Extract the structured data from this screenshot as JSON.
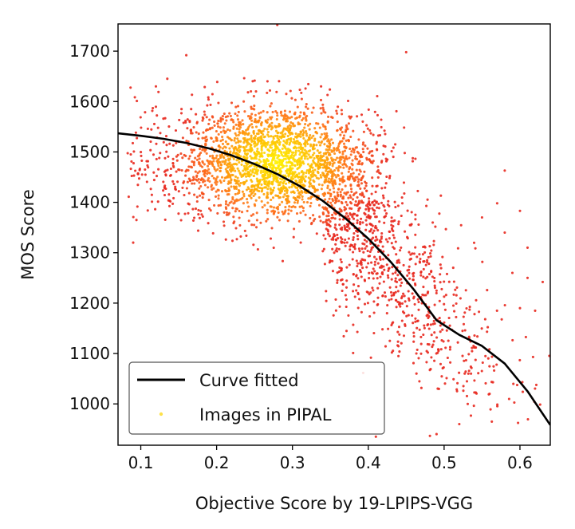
{
  "chart_data": {
    "type": "scatter",
    "xlabel": "Objective Score by 19-LPIPS-VGG",
    "ylabel": "MOS Score",
    "xlim": [
      0.07,
      0.64
    ],
    "ylim": [
      918,
      1754
    ],
    "x_ticks": [
      0.1,
      0.2,
      0.3,
      0.4,
      0.5,
      0.6
    ],
    "y_ticks": [
      1000,
      1100,
      1200,
      1300,
      1400,
      1500,
      1600,
      1700
    ],
    "x_tick_labels": [
      "0.1",
      "0.2",
      "0.3",
      "0.4",
      "0.5",
      "0.6"
    ],
    "y_tick_labels": [
      "1000",
      "1100",
      "1200",
      "1300",
      "1400",
      "1500",
      "1600",
      "1700"
    ],
    "grid": false,
    "legend_position": "bottom-left",
    "series": [
      {
        "name": "Curve fitted",
        "kind": "line",
        "color": "#000000",
        "x": [
          0.07,
          0.1,
          0.13,
          0.16,
          0.19,
          0.22,
          0.25,
          0.28,
          0.31,
          0.34,
          0.37,
          0.4,
          0.43,
          0.46,
          0.49,
          0.52,
          0.55,
          0.58,
          0.61,
          0.64
        ],
        "y": [
          1537,
          1532,
          1526,
          1518,
          1507,
          1493,
          1476,
          1456,
          1432,
          1403,
          1368,
          1328,
          1281,
          1227,
          1166,
          1137,
          1115,
          1080,
          1025,
          958
        ]
      },
      {
        "name": "Images in PIPAL",
        "kind": "scatter",
        "color_scale": [
          "#e8281e",
          "#ff6a1a",
          "#ffb300",
          "#fff200"
        ],
        "point_count": 3200,
        "cluster_center": [
          0.28,
          1480
        ],
        "outlier_points": [
          {
            "x": 0.45,
            "y": 1698
          },
          {
            "x": 0.16,
            "y": 1692
          },
          {
            "x": 0.57,
            "y": 1398
          },
          {
            "x": 0.58,
            "y": 1463
          },
          {
            "x": 0.6,
            "y": 1383
          },
          {
            "x": 0.61,
            "y": 1250
          },
          {
            "x": 0.63,
            "y": 1242
          },
          {
            "x": 0.59,
            "y": 1260
          },
          {
            "x": 0.55,
            "y": 1370
          },
          {
            "x": 0.58,
            "y": 1340
          },
          {
            "x": 0.6,
            "y": 1190
          },
          {
            "x": 0.62,
            "y": 1185
          },
          {
            "x": 0.49,
            "y": 940
          },
          {
            "x": 0.41,
            "y": 935
          },
          {
            "x": 0.52,
            "y": 960
          },
          {
            "x": 0.28,
            "y": 1752
          },
          {
            "x": 0.09,
            "y": 1320
          },
          {
            "x": 0.12,
            "y": 1630
          },
          {
            "x": 0.61,
            "y": 1310
          },
          {
            "x": 0.56,
            "y": 1020
          }
        ]
      }
    ]
  },
  "legend": {
    "items": [
      {
        "label": "Curve fitted"
      },
      {
        "label": "Images in PIPAL"
      }
    ]
  }
}
